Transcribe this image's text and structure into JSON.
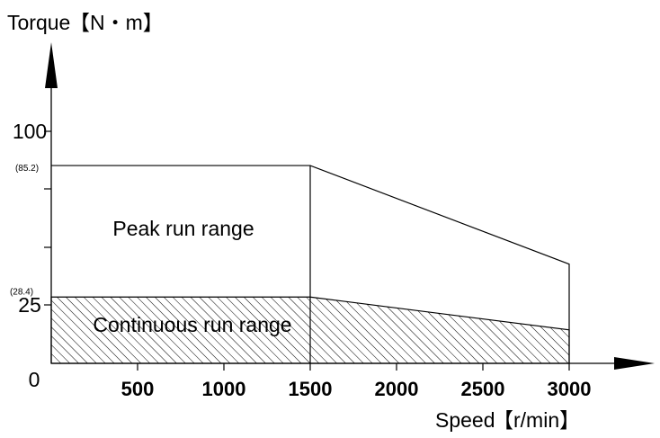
{
  "chart_data": {
    "type": "area",
    "title": "",
    "ylabel": "Torque",
    "ylabel_unit": "【N・m】",
    "xlabel": "Speed",
    "xlabel_unit": "【r/min】",
    "xlim": [
      0,
      3000
    ],
    "x_ticks": [
      500,
      1000,
      1500,
      2000,
      2500,
      3000
    ],
    "x_tick_labels": [
      "500",
      "1000",
      "1500",
      "2000",
      "2500",
      "3000"
    ],
    "y_tick_values": [
      25,
      100
    ],
    "y_tick_labels": [
      "25",
      "100"
    ],
    "origin_label": "0",
    "annotations": [
      {
        "text": "(85.2)",
        "y": 85.2
      },
      {
        "text": "(28.4)",
        "y": 28.4
      }
    ],
    "series": [
      {
        "name": "Peak run range",
        "points": [
          [
            0,
            85.2
          ],
          [
            1500,
            85.2
          ],
          [
            3000,
            42.6
          ]
        ]
      },
      {
        "name": "Continuous run range",
        "points": [
          [
            0,
            28.4
          ],
          [
            1500,
            28.4
          ],
          [
            3000,
            14.2
          ]
        ]
      }
    ],
    "legend": "inside",
    "grid": false
  }
}
